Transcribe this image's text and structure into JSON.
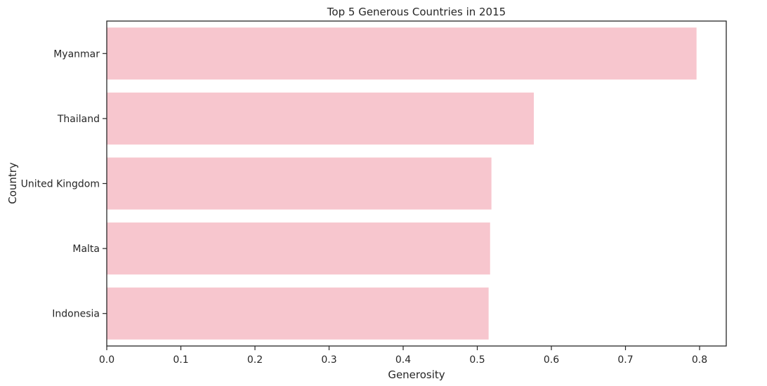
{
  "chart_data": {
    "type": "bar",
    "orientation": "horizontal",
    "title": "Top 5 Generous Countries in 2015",
    "xlabel": "Generosity",
    "ylabel": "Country",
    "categories": [
      "Myanmar",
      "Thailand",
      "United Kingdom",
      "Malta",
      "Indonesia"
    ],
    "values": [
      0.7959,
      0.5763,
      0.5191,
      0.5173,
      0.5153
    ],
    "xlim": [
      0,
      0.836
    ],
    "xticks": [
      "0.0",
      "0.1",
      "0.2",
      "0.3",
      "0.4",
      "0.5",
      "0.6",
      "0.7",
      "0.8"
    ],
    "bar_color": "#f7c6ce",
    "grid": false
  }
}
